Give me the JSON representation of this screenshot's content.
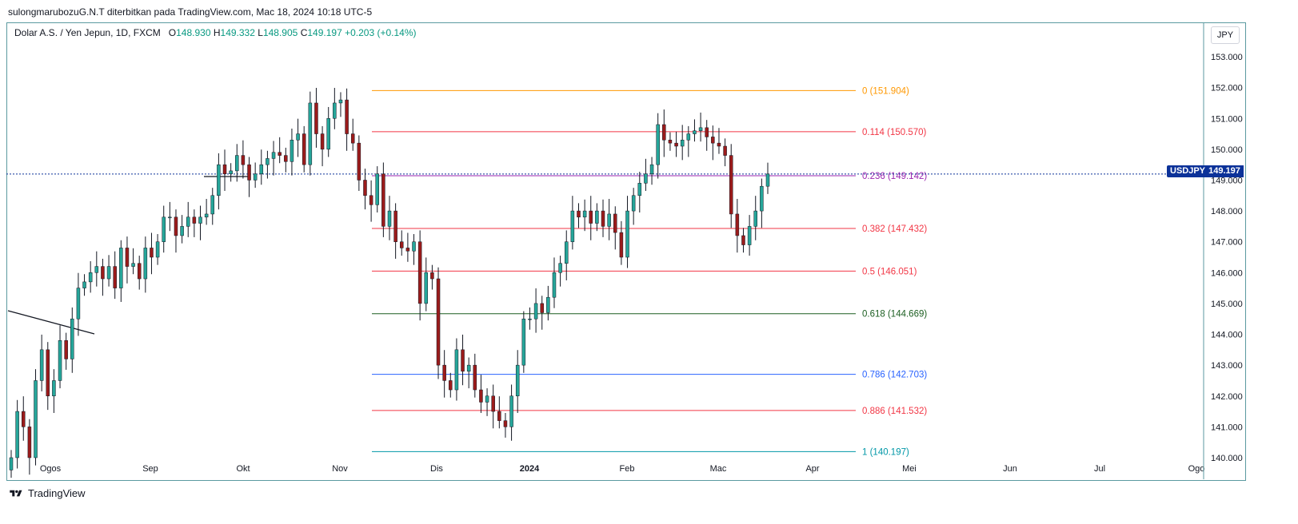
{
  "header": {
    "text": "sulongmarubozuG.N.T diterbitkan pada TradingView.com, Mac 18, 2024 10:18 UTC-5"
  },
  "legend": {
    "name": "Dolar A.S. / Yen Jepun, 1D, FXCM",
    "o_label": "O",
    "o": "148.930",
    "h_label": "H",
    "h": "149.332",
    "l_label": "L",
    "l": "148.905",
    "c_label": "C",
    "c": "149.197",
    "change": "+0.203 (+0.14%)"
  },
  "axis": {
    "currency": "JPY"
  },
  "price_tags": {
    "symbol": "USDJPY",
    "price": "149.197"
  },
  "footer": {
    "brand": "TradingView"
  },
  "colors": {
    "up": "#26a69a",
    "down": "#9b1b1b",
    "wick": "#131722",
    "fib_0": "#ff9800",
    "fib_114": "#f23645",
    "fib_236": "#9c27b0",
    "fib_382": "#f23645",
    "fib_5": "#f23645",
    "fib_618": "#1b5e20",
    "fib_786": "#2962ff",
    "fib_886": "#f23645",
    "fib_1": "#0097a7",
    "last_price_line": "#0c3299"
  },
  "chart_data": {
    "type": "candlestick",
    "symbol": "USDJPY",
    "timeframe": "1D",
    "ylim": [
      139.3,
      153.7
    ],
    "y_ticks": [
      140,
      141,
      142,
      143,
      144,
      145,
      146,
      147,
      148,
      149,
      150,
      151,
      152,
      153
    ],
    "x_ticks": [
      "Ogos",
      "Sep",
      "Okt",
      "Nov",
      "Dis",
      "2024",
      "Feb",
      "Mac",
      "Apr",
      "Mei",
      "Jun",
      "Jul",
      "Ogo"
    ],
    "last_price": 149.197,
    "fib_levels": [
      {
        "ratio": "0",
        "price": 151.904
      },
      {
        "ratio": "0.114",
        "price": 150.57
      },
      {
        "ratio": "0.236",
        "price": 149.142
      },
      {
        "ratio": "0.382",
        "price": 147.432
      },
      {
        "ratio": "0.5",
        "price": 146.051
      },
      {
        "ratio": "0.618",
        "price": 144.669
      },
      {
        "ratio": "0.786",
        "price": 142.703
      },
      {
        "ratio": "0.886",
        "price": 141.532
      },
      {
        "ratio": "1",
        "price": 140.197
      }
    ],
    "closes": [
      140.0,
      141.5,
      141.0,
      140.0,
      142.5,
      143.5,
      142.0,
      142.5,
      143.8,
      143.2,
      144.5,
      145.5,
      145.7,
      146.0,
      146.2,
      145.8,
      146.2,
      145.5,
      146.8,
      146.2,
      146.3,
      145.8,
      146.8,
      146.5,
      147.0,
      147.8,
      147.8,
      147.2,
      147.5,
      147.8,
      147.6,
      147.8,
      147.9,
      148.5,
      149.5,
      149.2,
      149.3,
      149.8,
      149.5,
      149.0,
      149.2,
      149.5,
      149.7,
      149.9,
      149.8,
      149.6,
      150.3,
      150.5,
      149.5,
      151.5,
      150.5,
      150.0,
      151.0,
      151.5,
      151.6,
      150.5,
      150.2,
      149.0,
      148.5,
      148.2,
      149.2,
      147.5,
      148.0,
      147.0,
      146.8,
      146.7,
      147.0,
      145.0,
      146.0,
      145.8,
      143.0,
      142.5,
      142.2,
      143.5,
      142.8,
      143.0,
      142.2,
      141.8,
      142.0,
      141.5,
      141.2,
      141.0,
      142.0,
      143.0,
      144.5,
      144.5,
      145.0,
      144.7,
      145.2,
      146.0,
      146.3,
      147.0,
      148.0,
      147.8,
      148.0,
      147.6,
      148.0,
      147.5,
      147.9,
      147.3,
      146.5,
      148.0,
      148.5,
      148.9,
      149.2,
      149.5,
      150.8,
      150.3,
      150.2,
      150.1,
      150.3,
      150.5,
      150.6,
      150.7,
      150.4,
      150.2,
      150.1,
      149.8,
      147.9,
      147.2,
      146.9,
      147.5,
      148.0,
      148.8,
      149.197
    ]
  }
}
